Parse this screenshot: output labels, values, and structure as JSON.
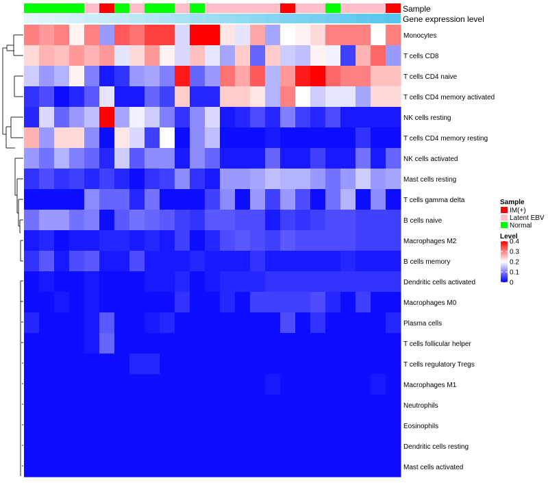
{
  "chart_data": {
    "type": "heatmap",
    "title": "",
    "annotation_tracks": [
      {
        "name": "Sample",
        "values": [
          "Normal",
          "Normal",
          "Normal",
          "Normal",
          "Latent EBV",
          "IM(+)",
          "Normal",
          "Latent EBV",
          "Normal",
          "Normal",
          "Latent EBV",
          "Normal",
          "Latent EBV",
          "Latent EBV",
          "Latent EBV",
          "Latent EBV",
          "Latent EBV",
          "IM(+)",
          "Latent EBV",
          "Latent EBV",
          "Normal",
          "Latent EBV",
          "Latent EBV",
          "Latent EBV",
          "IM(+)"
        ]
      },
      {
        "name": "Gene expression level",
        "values": [
          0.0,
          0.04,
          0.08,
          0.12,
          0.17,
          0.21,
          0.25,
          0.29,
          0.33,
          0.37,
          0.42,
          0.46,
          0.5,
          0.54,
          0.58,
          0.62,
          0.67,
          0.71,
          0.75,
          0.79,
          0.83,
          0.87,
          0.92,
          0.96,
          1.0
        ]
      }
    ],
    "rows": [
      "Monocytes",
      "T cells CD8",
      "T cells CD4 naive",
      "T cells CD4 memory activated",
      "NK cells resting",
      "T cells CD4 memory resting",
      "NK cells activated",
      "Mast cells resting",
      "T cells gamma delta",
      "B cells naive",
      "Macrophages M2",
      "B cells memory",
      "Dendritic cells activated",
      "Macrophages M0",
      "Plasma cells",
      "T cells follicular helper",
      "T cells regulatory  Tregs",
      "Macrophages M1",
      "Neutrophils",
      "Eosinophils",
      "Dendritic cells resting",
      "Mast cells activated"
    ],
    "values": [
      [
        0.3,
        0.28,
        0.3,
        0.21,
        0.3,
        0.12,
        0.33,
        0.31,
        0.35,
        0.35,
        0.17,
        0.4,
        0.4,
        0.22,
        0.18,
        0.27,
        0.13,
        0.2,
        0.21,
        0.23,
        0.3,
        0.3,
        0.3,
        0.2,
        0.3
      ],
      [
        0.23,
        0.26,
        0.25,
        0.28,
        0.26,
        0.28,
        0.18,
        0.23,
        0.28,
        0.21,
        0.17,
        0.25,
        0.18,
        0.13,
        0.24,
        0.08,
        0.24,
        0.16,
        0.15,
        0.21,
        0.19,
        0.05,
        0.26,
        0.32,
        0.12
      ],
      [
        0.16,
        0.12,
        0.14,
        0.21,
        0.1,
        0.02,
        0.04,
        0.12,
        0.13,
        0.1,
        0.38,
        0.08,
        0.12,
        0.31,
        0.27,
        0.33,
        0.14,
        0.28,
        0.38,
        0.4,
        0.32,
        0.3,
        0.3,
        0.25,
        0.25
      ],
      [
        0.04,
        0.06,
        0.01,
        0.03,
        0.07,
        0.18,
        0.02,
        0.02,
        0.08,
        0.05,
        0.24,
        0.03,
        0.03,
        0.24,
        0.24,
        0.22,
        0.14,
        0.3,
        0.2,
        0.16,
        0.18,
        0.18,
        0.13,
        0.23,
        0.23
      ],
      [
        0.03,
        0.17,
        0.08,
        0.12,
        0.15,
        0.4,
        0.13,
        0.19,
        0.16,
        0.1,
        0.04,
        0.11,
        0.17,
        0.02,
        0.03,
        0.06,
        0.03,
        0.1,
        0.05,
        0.03,
        0.06,
        0.02,
        0.02,
        0.02,
        0.02
      ],
      [
        0.26,
        0.12,
        0.23,
        0.23,
        0.11,
        0.01,
        0.22,
        0.17,
        0.05,
        0.2,
        0.01,
        0.11,
        0.15,
        0.01,
        0.01,
        0.01,
        0.02,
        0.01,
        0.01,
        0.01,
        0.01,
        0.01,
        0.04,
        0.01,
        0.01
      ],
      [
        0.12,
        0.09,
        0.14,
        0.1,
        0.08,
        0.03,
        0.16,
        0.07,
        0.11,
        0.11,
        0.02,
        0.11,
        0.08,
        0.02,
        0.02,
        0.02,
        0.08,
        0.02,
        0.02,
        0.05,
        0.02,
        0.02,
        0.09,
        0.02,
        0.08
      ],
      [
        0.04,
        0.06,
        0.04,
        0.05,
        0.03,
        0.05,
        0.03,
        0.01,
        0.04,
        0.05,
        0.11,
        0.04,
        0.02,
        0.12,
        0.12,
        0.13,
        0.15,
        0.14,
        0.14,
        0.12,
        0.09,
        0.12,
        0.16,
        0.12,
        0.13
      ],
      [
        0.01,
        0.01,
        0.01,
        0.01,
        0.11,
        0.08,
        0.08,
        0.03,
        0.09,
        0.01,
        0.01,
        0.01,
        0.05,
        0.11,
        0.01,
        0.12,
        0.05,
        0.12,
        0.06,
        0.01,
        0.09,
        0.14,
        0.01,
        0.11,
        0.01
      ],
      [
        0.09,
        0.12,
        0.12,
        0.09,
        0.1,
        0.01,
        0.07,
        0.09,
        0.08,
        0.07,
        0.05,
        0.04,
        0.07,
        0.07,
        0.06,
        0.06,
        0.02,
        0.05,
        0.04,
        0.05,
        0.06,
        0.06,
        0.05,
        0.05,
        0.05
      ],
      [
        0.02,
        0.03,
        0.01,
        0.02,
        0.02,
        0.03,
        0.03,
        0.02,
        0.03,
        0.02,
        0.05,
        0.01,
        0.03,
        0.06,
        0.07,
        0.06,
        0.05,
        0.07,
        0.06,
        0.06,
        0.06,
        0.06,
        0.05,
        0.05,
        0.05
      ],
      [
        0.04,
        0.07,
        0.02,
        0.06,
        0.07,
        0.02,
        0.02,
        0.06,
        0.02,
        0.02,
        0.02,
        0.03,
        0.02,
        0.02,
        0.02,
        0.04,
        0.02,
        0.02,
        0.02,
        0.02,
        0.02,
        0.03,
        0.02,
        0.02,
        0.02
      ],
      [
        0.01,
        0.02,
        0.01,
        0.01,
        0.02,
        0.01,
        0.01,
        0.01,
        0.02,
        0.02,
        0.03,
        0.01,
        0.02,
        0.03,
        0.03,
        0.03,
        0.04,
        0.04,
        0.04,
        0.04,
        0.04,
        0.04,
        0.04,
        0.04,
        0.04
      ],
      [
        0.01,
        0.01,
        0.02,
        0.01,
        0.02,
        0.01,
        0.01,
        0.01,
        0.01,
        0.01,
        0.04,
        0.01,
        0.01,
        0.03,
        0.01,
        0.05,
        0.05,
        0.05,
        0.05,
        0.06,
        0.03,
        0.01,
        0.05,
        0.01,
        0.01
      ],
      [
        0.03,
        0.01,
        0.01,
        0.01,
        0.02,
        0.07,
        0.01,
        0.01,
        0.02,
        0.03,
        0.01,
        0.01,
        0.01,
        0.01,
        0.01,
        0.01,
        0.01,
        0.06,
        0.01,
        0.04,
        0.01,
        0.01,
        0.01,
        0.01,
        0.03
      ],
      [
        0.01,
        0.01,
        0.01,
        0.01,
        0.02,
        0.08,
        0.01,
        0.01,
        0.01,
        0.01,
        0.01,
        0.01,
        0.01,
        0.01,
        0.01,
        0.01,
        0.01,
        0.01,
        0.01,
        0.01,
        0.01,
        0.01,
        0.01,
        0.01,
        0.01
      ],
      [
        0.01,
        0.01,
        0.01,
        0.01,
        0.01,
        0.01,
        0.01,
        0.03,
        0.03,
        0.01,
        0.01,
        0.01,
        0.01,
        0.01,
        0.01,
        0.01,
        0.01,
        0.01,
        0.01,
        0.01,
        0.01,
        0.01,
        0.01,
        0.01,
        0.01
      ],
      [
        0.01,
        0.01,
        0.01,
        0.01,
        0.01,
        0.01,
        0.01,
        0.01,
        0.01,
        0.01,
        0.01,
        0.01,
        0.01,
        0.01,
        0.01,
        0.01,
        0.02,
        0.01,
        0.01,
        0.01,
        0.01,
        0.01,
        0.01,
        0.02,
        0.01
      ],
      [
        0.01,
        0.01,
        0.01,
        0.01,
        0.01,
        0.01,
        0.01,
        0.01,
        0.01,
        0.01,
        0.01,
        0.01,
        0.01,
        0.01,
        0.01,
        0.01,
        0.01,
        0.01,
        0.01,
        0.01,
        0.01,
        0.01,
        0.01,
        0.01,
        0.01
      ],
      [
        0.01,
        0.01,
        0.01,
        0.01,
        0.01,
        0.01,
        0.01,
        0.01,
        0.01,
        0.01,
        0.01,
        0.01,
        0.01,
        0.01,
        0.01,
        0.01,
        0.01,
        0.01,
        0.01,
        0.01,
        0.01,
        0.01,
        0.01,
        0.01,
        0.01
      ],
      [
        0.01,
        0.01,
        0.01,
        0.01,
        0.01,
        0.01,
        0.01,
        0.01,
        0.01,
        0.01,
        0.01,
        0.01,
        0.01,
        0.01,
        0.01,
        0.01,
        0.01,
        0.01,
        0.01,
        0.01,
        0.01,
        0.01,
        0.01,
        0.01,
        0.01
      ],
      [
        0.01,
        0.01,
        0.01,
        0.01,
        0.01,
        0.01,
        0.01,
        0.01,
        0.01,
        0.01,
        0.01,
        0.01,
        0.01,
        0.01,
        0.01,
        0.01,
        0.01,
        0.01,
        0.01,
        0.01,
        0.01,
        0.01,
        0.01,
        0.01,
        0.01
      ]
    ],
    "color_scale": {
      "title": "Level",
      "min": 0,
      "max": 0.4,
      "ticks": [
        0.4,
        0.3,
        0.2,
        0.1,
        0
      ],
      "tick_labels": [
        "0.4",
        "0.3",
        "0.2",
        "0.1",
        "0"
      ],
      "colors": {
        "low": "#0000ff",
        "mid": "#ffffff",
        "high": "#ff0000"
      },
      "mid_value": 0.2
    },
    "legend": {
      "title": "Sample",
      "entries": [
        {
          "label": "IM(+)",
          "color": "#ff0000"
        },
        {
          "label": "Latent EBV",
          "color": "#ffc0cb"
        },
        {
          "label": "Normal",
          "color": "#00ff00"
        }
      ]
    },
    "expression_track_colors": {
      "low": "#e3f6fb",
      "high": "#56c5ee"
    },
    "dendrogram": "row"
  }
}
